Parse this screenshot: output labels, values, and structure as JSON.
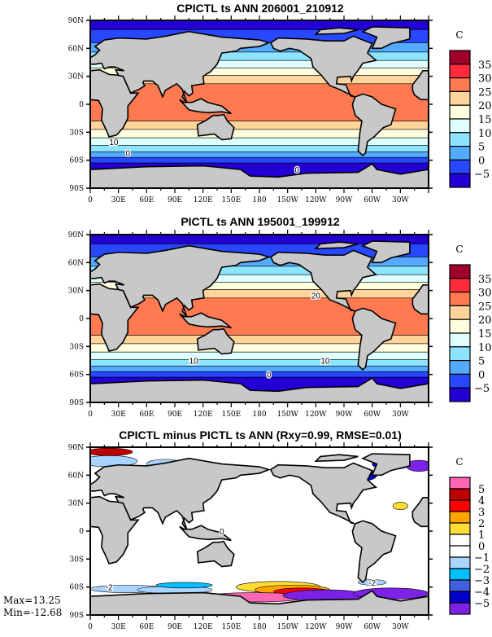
{
  "panels": [
    {
      "title": "CPICTL ts ANN 206001_210912",
      "unit": "C",
      "type": "abs",
      "colorbar_labels": [
        "35",
        "30",
        "25",
        "20",
        "15",
        "10",
        "5",
        "0",
        "-5"
      ],
      "colorbar_colors": [
        "#a0002a",
        "#ff2a3a",
        "#ff7a50",
        "#ffd49b",
        "#ffffe0",
        "#e0ffff",
        "#8de4ff",
        "#53aaff",
        "#2848ff",
        "#2200d4"
      ],
      "contour_labels": [
        "10",
        "0",
        "0"
      ]
    },
    {
      "title": "PICTL ts ANN 195001_199912",
      "unit": "C",
      "type": "abs",
      "colorbar_labels": [
        "35",
        "30",
        "25",
        "20",
        "15",
        "10",
        "5",
        "0",
        "-5"
      ],
      "colorbar_colors": [
        "#a0002a",
        "#ff2a3a",
        "#ff7a50",
        "#ffd49b",
        "#ffffe0",
        "#e0ffff",
        "#8de4ff",
        "#53aaff",
        "#2848ff",
        "#2200d4"
      ],
      "contour_labels": [
        "20",
        "10",
        "10",
        "0"
      ]
    },
    {
      "title": "CPICTL minus PICTL ts ANN (Rxy=0.99, RMSE=0.01)",
      "unit": "C",
      "type": "diff",
      "colorbar_labels": [
        "5",
        "4",
        "3",
        "2",
        "1",
        "0",
        "-1",
        "-2",
        "-3",
        "-4",
        "-5"
      ],
      "colorbar_colors": [
        "#ff66b4",
        "#c00000",
        "#ff0000",
        "#ffa500",
        "#ffdd33",
        "#ffffff",
        "#ffffff",
        "#a8d4ff",
        "#00c0ff",
        "#4060e0",
        "#0000c8",
        "#7b22e6"
      ],
      "contour_labels": [
        "0",
        "-2",
        "-2"
      ]
    }
  ],
  "lat_labels": [
    "90N",
    "60N",
    "30N",
    "0",
    "30S",
    "60S",
    "90S"
  ],
  "lon_labels": [
    "0",
    "30E",
    "60E",
    "90E",
    "120E",
    "150E",
    "180",
    "150W",
    "120W",
    "90W",
    "60W",
    "30W"
  ],
  "stats": {
    "max": "Max=13.25",
    "min": "Min=-12.68"
  },
  "colors": {
    "land": "#c8c8c8"
  }
}
